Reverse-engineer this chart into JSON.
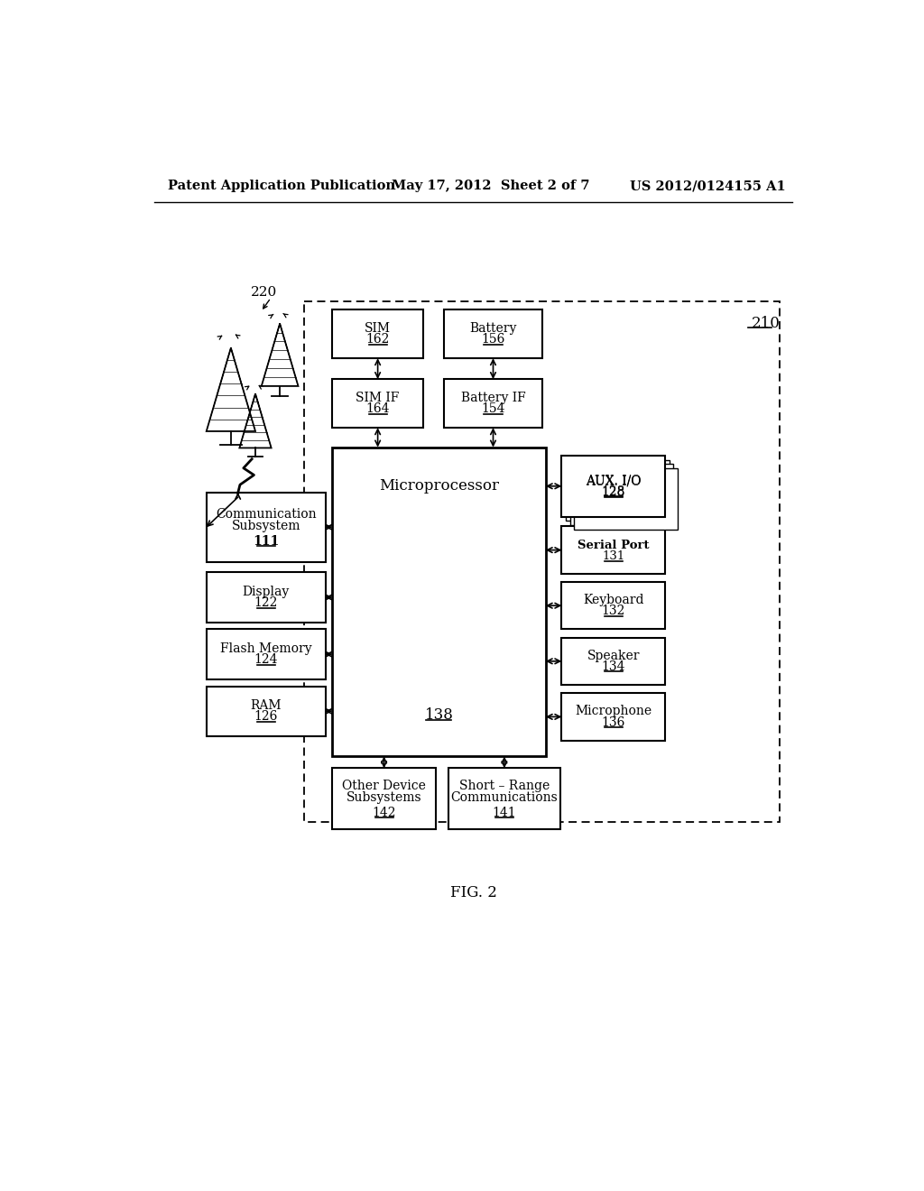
{
  "header_left": "Patent Application Publication",
  "header_mid": "May 17, 2012  Sheet 2 of 7",
  "header_right": "US 2012/0124155 A1",
  "figure_label": "FIG. 2",
  "bg": "#ffffff",
  "outer_dashed": [
    270,
    228,
    680,
    750
  ],
  "boxes": {
    "sim": [
      310,
      240,
      130,
      70,
      "SIM",
      "162"
    ],
    "battery": [
      470,
      240,
      140,
      70,
      "Battery",
      "156"
    ],
    "sim_if": [
      310,
      340,
      130,
      70,
      "SIM IF",
      "164"
    ],
    "battery_if": [
      470,
      340,
      140,
      70,
      "Battery IF",
      "154"
    ],
    "microprocessor": [
      310,
      438,
      305,
      445,
      "Microprocessor",
      "138"
    ],
    "comm": [
      130,
      503,
      170,
      100,
      "Communication\nSubsystem",
      "111"
    ],
    "display": [
      130,
      618,
      170,
      72,
      "Display",
      "122"
    ],
    "flash": [
      130,
      700,
      170,
      72,
      "Flash Memory",
      "124"
    ],
    "ram": [
      130,
      782,
      170,
      72,
      "RAM",
      "126"
    ],
    "aux_io": [
      638,
      450,
      148,
      88,
      "AUX. I/O",
      "128"
    ],
    "serial": [
      638,
      552,
      148,
      68,
      "Serial Port",
      "131"
    ],
    "keyboard": [
      638,
      632,
      148,
      68,
      "Keyboard",
      "132"
    ],
    "speaker": [
      638,
      712,
      148,
      68,
      "Speaker",
      "134"
    ],
    "microphone": [
      638,
      792,
      148,
      68,
      "Microphone",
      "136"
    ],
    "other": [
      310,
      900,
      148,
      88,
      "Other Device\nSubsystems",
      "142"
    ],
    "shortrange": [
      476,
      900,
      160,
      88,
      "Short – Range\nCommunications",
      "141"
    ]
  },
  "serial_bold": true
}
